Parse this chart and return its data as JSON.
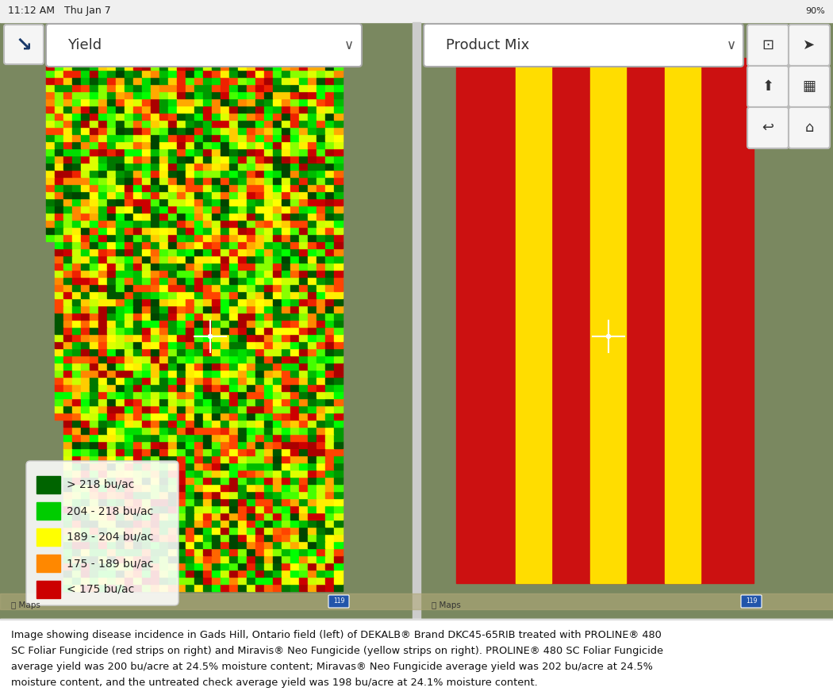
{
  "caption_lines": [
    "Image showing disease incidence in Gads Hill, Ontario field (left) of DEKALB® Brand DKC45-65RIB treated with PROLINE® 480",
    "SC Foliar Fungicide (red strips on right) and Miravis® Neo Fungicide (yellow strips on right). PROLINE® 480 SC Foliar Fungicide",
    "average yield was 200 bu/acre at 24.5% moisture content; Miravas® Neo Fungicide average yield was 202 bu/acre at 24.5%",
    "moisture content, and the untreated check average yield was 198 bu/acre at 24.1% moisture content."
  ],
  "status_bar_text": "11:12 AM   Thu Jan 7",
  "battery_text": "90%",
  "left_dropdown": "Yield",
  "right_dropdown": "Product Mix",
  "legend_items": [
    {
      "color": "#006400",
      "label": "> 218 bu/ac"
    },
    {
      "color": "#00cc00",
      "label": "204 - 218 bu/ac"
    },
    {
      "color": "#ffff00",
      "label": "189 - 204 bu/ac"
    },
    {
      "color": "#ff8800",
      "label": "175 - 189 bu/ac"
    },
    {
      "color": "#cc0000",
      "label": "< 175 bu/ac"
    }
  ],
  "bg_color": "#ffffff",
  "status_bar_bg": "#f0f0f0",
  "satellite_color": "#7a8860",
  "field_stripe_red": "#cc1111",
  "field_stripe_yellow": "#ffdd00",
  "road_color": "#b0a878",
  "separator_color": "#cccccc",
  "btn_face": "#f5f5f5",
  "btn_edge": "#bbbbbb",
  "dropdown_face": "#ffffff",
  "dropdown_edge": "#aaaaaa",
  "legend_face": [
    1.0,
    1.0,
    1.0,
    0.88
  ],
  "legend_edge": "#cccccc",
  "caption_text_color": "#111111",
  "caption_fontsize": 9.3,
  "status_fontsize": 9,
  "dropdown_fontsize": 13,
  "legend_fontsize": 10
}
